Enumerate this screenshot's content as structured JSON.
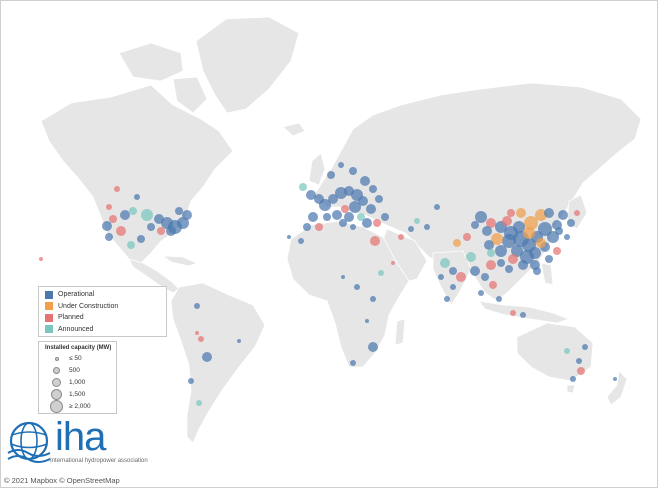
{
  "colors": {
    "land": "#e6e6e6",
    "ocean": "#ffffff",
    "operational": "#4c78b0",
    "under_construction": "#f0a04b",
    "planned": "#e57373",
    "announced": "#7cc6c0",
    "logo": "#1f6fb5"
  },
  "legend": {
    "status_items": [
      {
        "label": "Operational",
        "color": "#4c78b0"
      },
      {
        "label": "Under Construction",
        "color": "#f0a04b"
      },
      {
        "label": "Planned",
        "color": "#e57373"
      },
      {
        "label": "Announced",
        "color": "#7cc6c0"
      }
    ],
    "size_title": "Installed capacity (MW)",
    "size_items": [
      {
        "label": "≤ 50",
        "mw": 50
      },
      {
        "label": "500",
        "mw": 500
      },
      {
        "label": "1,000",
        "mw": 1000
      },
      {
        "label": "1,500",
        "mw": 1500
      },
      {
        "label": "≥ 2,000",
        "mw": 2000
      }
    ]
  },
  "logo": {
    "icon": "iha-globe-icon",
    "wordmark": "iha",
    "tagline": "International hydropower association"
  },
  "credit": "© 2021 Mapbox © OpenStreetMap"
}
